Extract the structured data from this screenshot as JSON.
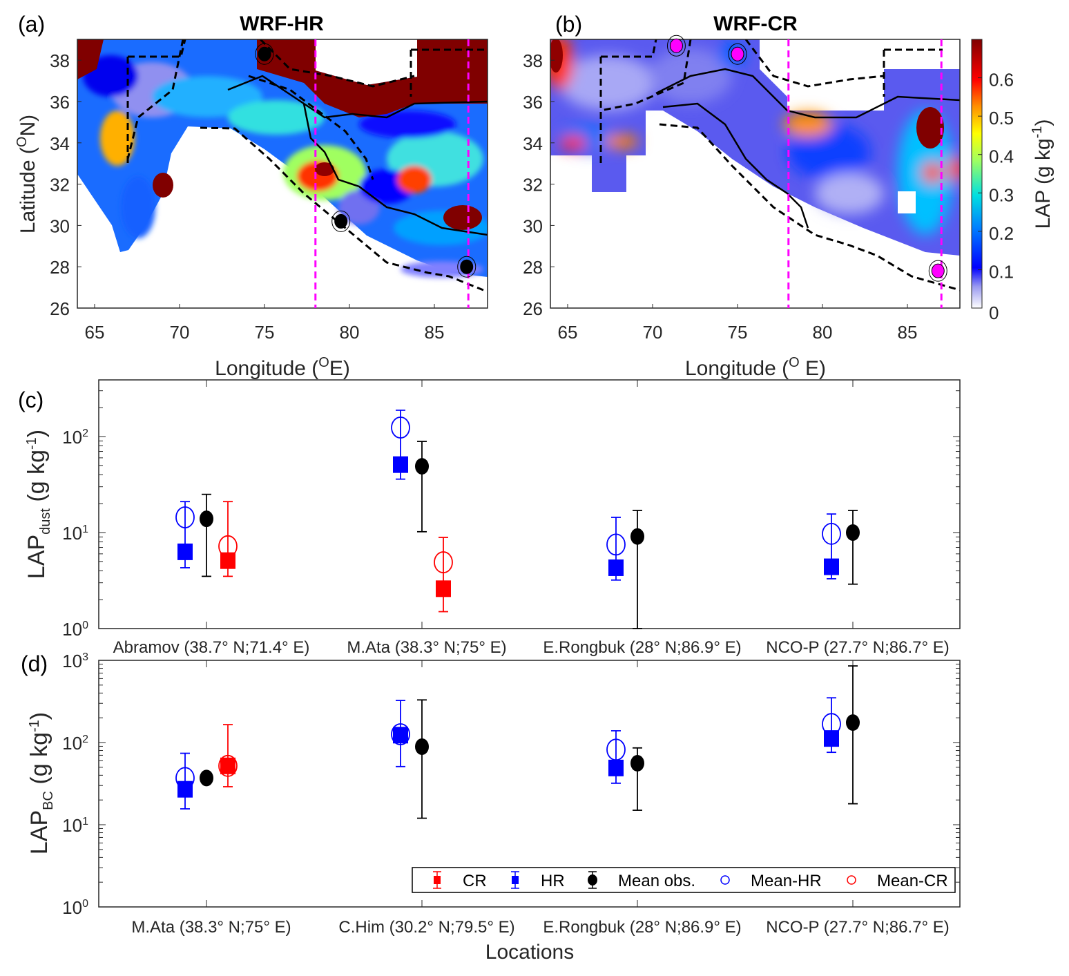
{
  "panel_labels": {
    "a": "(a)",
    "b": "(b)",
    "c": "(c)",
    "d": "(d)"
  },
  "chart_data": [
    {
      "type": "heatmap",
      "panel": "a",
      "title": "WRF-HR",
      "xlabel": {
        "pre": "Longitude (",
        "sup": "O",
        "post": "E)"
      },
      "ylabel": {
        "pre": "Latitude (",
        "sup": "O",
        "post": "N)"
      },
      "xticks": [
        65,
        70,
        75,
        80,
        85
      ],
      "yticks": [
        26,
        28,
        30,
        32,
        34,
        36,
        38
      ],
      "xlim": [
        64,
        88.2
      ],
      "ylim": [
        26,
        39
      ],
      "reference_lines_lon": [
        78,
        87
      ],
      "reference_line_color": "#ff00ff",
      "site_markers": [
        {
          "lon": 75,
          "lat": 38.3,
          "color": "#000000"
        },
        {
          "lon": 79.5,
          "lat": 30.2,
          "color": "#000000"
        },
        {
          "lon": 86.9,
          "lat": 28,
          "color": "#000000"
        }
      ]
    },
    {
      "type": "heatmap",
      "panel": "b",
      "title": "WRF-CR",
      "xlabel": {
        "pre": "Longitude (",
        "sup": "O",
        "post": " E)"
      },
      "xticks": [
        65,
        70,
        75,
        80,
        85
      ],
      "yticks": [
        26,
        28,
        30,
        32,
        34,
        36,
        38
      ],
      "xlim": [
        64,
        88.2
      ],
      "ylim": [
        26,
        39
      ],
      "reference_lines_lon": [
        78,
        87
      ],
      "reference_line_color": "#ff00ff",
      "site_markers": [
        {
          "lon": 71.4,
          "lat": 38.7,
          "color": "#ff00ff"
        },
        {
          "lon": 75,
          "lat": 38.3,
          "color": "#ff00ff"
        },
        {
          "lon": 86.8,
          "lat": 27.8,
          "color": "#ff00ff"
        }
      ],
      "colorbar": {
        "label": {
          "pre": "LAP (g kg",
          "sup": "-1",
          "post": ")"
        },
        "ticks": [
          "0",
          "0.1",
          "0.2",
          "0.3",
          "0.4",
          "0.5",
          "0.6"
        ],
        "range": [
          0,
          0.7
        ],
        "colormap": "jet"
      }
    },
    {
      "type": "scatter",
      "panel": "c",
      "yscale": "log",
      "ylim": [
        1,
        390
      ],
      "yticks": [
        {
          "base": "10",
          "exp": "0"
        },
        {
          "base": "10",
          "exp": "1"
        },
        {
          "base": "10",
          "exp": "2"
        }
      ],
      "ylabel": {
        "main": "LAP",
        "sub": "dust",
        "pre": " (g kg",
        "sup": "-1",
        "post": ")"
      },
      "categories": [
        "Abramov  (38.7° N;71.4° E)",
        "M.Ata  (38.3° N;75° E)",
        "E.Rongbuk  (28° N;86.9° E)",
        "NCO-P  (27.7° N;86.7° E)"
      ],
      "series": [
        {
          "name": "HR",
          "color": "#0000ff",
          "marker": "square",
          "values": [
            6.3,
            51,
            4.3,
            4.4
          ],
          "err_low": [
            4.3,
            36,
            3.2,
            3.3
          ],
          "err_high": [
            21,
            188,
            14.4,
            15.6
          ]
        },
        {
          "name": "Mean-HR",
          "color": "#0000ff",
          "marker": "open-circle",
          "values": [
            14.4,
            124,
            7.5,
            9.7
          ]
        },
        {
          "name": "Mean obs.",
          "color": "#000000",
          "marker": "filled-circle",
          "values": [
            13.9,
            49,
            9.1,
            10
          ],
          "err_low": [
            3.5,
            10.2,
            1.0,
            2.9
          ],
          "err_high": [
            25,
            89,
            17,
            17
          ]
        },
        {
          "name": "CR",
          "color": "#ff0000",
          "marker": "square",
          "values": [
            5.1,
            2.6,
            null,
            null
          ],
          "err_low": [
            3.5,
            1.5,
            null,
            null
          ],
          "err_high": [
            21,
            8.9,
            null,
            null
          ]
        },
        {
          "name": "Mean-CR",
          "color": "#ff0000",
          "marker": "open-circle",
          "values": [
            7.2,
            4.9,
            null,
            null
          ]
        }
      ]
    },
    {
      "type": "scatter",
      "panel": "d",
      "yscale": "log",
      "ylim": [
        1,
        1000
      ],
      "yticks": [
        {
          "base": "10",
          "exp": "0"
        },
        {
          "base": "10",
          "exp": "1"
        },
        {
          "base": "10",
          "exp": "2"
        },
        {
          "base": "10",
          "exp": "3"
        }
      ],
      "ylabel": {
        "main": "LAP",
        "sub": "BC",
        "pre": " (g kg",
        "sup": "-1",
        "post": ")"
      },
      "xlabel": "Locations",
      "categories": [
        "M.Ata  (38.3° N;75° E)",
        "C.Him (30.2° N;79.5° E)",
        "E.Rongbuk (28° N;86.9° E)",
        "NCO-P (27.7° N;86.7° E)"
      ],
      "legend": {
        "position": "bottom-right",
        "entries": [
          "CR",
          "HR",
          "Mean obs.",
          "Mean-HR",
          "Mean-CR"
        ]
      },
      "series": [
        {
          "name": "HR",
          "color": "#0000ff",
          "marker": "square",
          "values": [
            27,
            123,
            49,
            112
          ],
          "err_low": [
            15.6,
            51,
            32,
            76
          ],
          "err_high": [
            74,
            325,
            139,
            350
          ]
        },
        {
          "name": "Mean-HR",
          "color": "#0000ff",
          "marker": "open-circle",
          "values": [
            37,
            126,
            82,
            168
          ]
        },
        {
          "name": "Mean obs.",
          "color": "#000000",
          "marker": "filled-circle",
          "values": [
            37,
            89,
            56,
            175
          ],
          "err_low": [
            null,
            12,
            15,
            18
          ],
          "err_high": [
            null,
            330,
            86,
            855
          ]
        },
        {
          "name": "CR",
          "color": "#ff0000",
          "marker": "square",
          "values": [
            52,
            null,
            null,
            null
          ],
          "err_low": [
            29,
            null,
            null,
            null
          ],
          "err_high": [
            165,
            null,
            null,
            null
          ]
        },
        {
          "name": "Mean-CR",
          "color": "#ff0000",
          "marker": "open-circle",
          "values": [
            52,
            null,
            null,
            null
          ]
        }
      ]
    }
  ]
}
